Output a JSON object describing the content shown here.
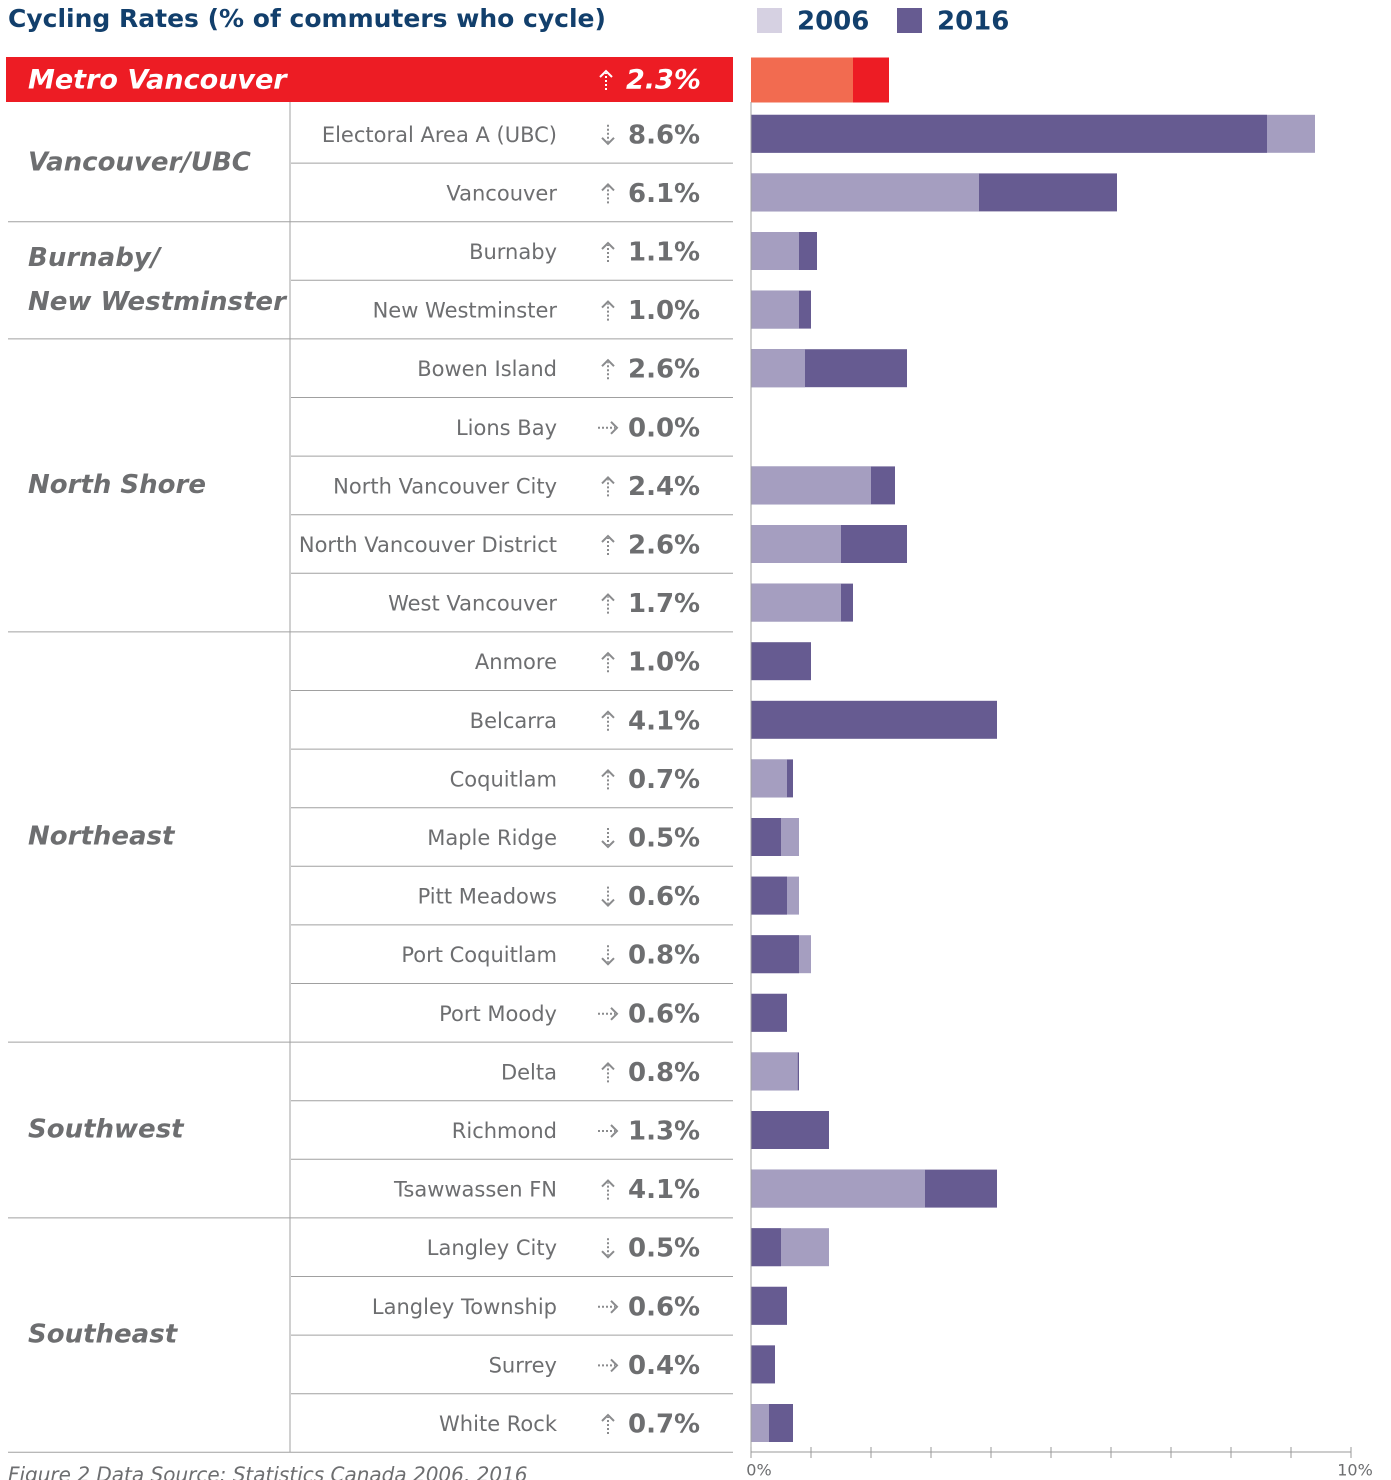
{
  "chart_data": {
    "type": "bar",
    "title": "Cycling Rates (% of commuters who cycle)",
    "footnote": "Figure 2 Data Source: Statistics Canada 2006, 2016",
    "series": [
      {
        "name": "2006",
        "color": "#a59ec0"
      },
      {
        "name": "2016",
        "color": "#665b91"
      }
    ],
    "legend_colors": [
      "#d6d1e2",
      "#665b91"
    ],
    "xlim": [
      0,
      10
    ],
    "xticks": [
      {
        "value": 0,
        "label": "0%"
      },
      {
        "value": 10,
        "label": "10%"
      }
    ],
    "xminor_ticks": [
      1,
      2,
      3,
      4,
      5,
      6,
      7,
      8,
      9
    ],
    "total": {
      "category": "Metro Vancouver",
      "values": [
        1.7,
        2.3
      ],
      "value_label": "2.3%",
      "trend": "up",
      "colors": [
        "#f26b50",
        "#ed1c24"
      ]
    },
    "groups": [
      {
        "name_lines": [
          "Vancouver/UBC"
        ],
        "rows": [
          {
            "category": "Electoral Area A (UBC)",
            "values": [
              9.4,
              8.6
            ],
            "value_label": "8.6%",
            "trend": "down"
          },
          {
            "category": "Vancouver",
            "values": [
              3.8,
              6.1
            ],
            "value_label": "6.1%",
            "trend": "up"
          }
        ]
      },
      {
        "name_lines": [
          "Burnaby/",
          "New Westminster"
        ],
        "rows": [
          {
            "category": "Burnaby",
            "values": [
              0.8,
              1.1
            ],
            "value_label": "1.1%",
            "trend": "up"
          },
          {
            "category": "New Westminster",
            "values": [
              0.8,
              1.0
            ],
            "value_label": "1.0%",
            "trend": "up"
          }
        ]
      },
      {
        "name_lines": [
          "North Shore"
        ],
        "rows": [
          {
            "category": "Bowen Island",
            "values": [
              0.9,
              2.6
            ],
            "value_label": "2.6%",
            "trend": "up"
          },
          {
            "category": "Lions Bay",
            "values": [
              0,
              0
            ],
            "value_label": "0.0%",
            "trend": "flat"
          },
          {
            "category": "North Vancouver City",
            "values": [
              2.0,
              2.4
            ],
            "value_label": "2.4%",
            "trend": "up"
          },
          {
            "category": "North Vancouver District",
            "values": [
              1.5,
              2.6
            ],
            "value_label": "2.6%",
            "trend": "up"
          },
          {
            "category": "West Vancouver",
            "values": [
              1.5,
              1.7
            ],
            "value_label": "1.7%",
            "trend": "up"
          }
        ]
      },
      {
        "name_lines": [
          "Northeast"
        ],
        "rows": [
          {
            "category": "Anmore",
            "values": [
              0,
              1.0
            ],
            "value_label": "1.0%",
            "trend": "up"
          },
          {
            "category": "Belcarra",
            "values": [
              0,
              4.1
            ],
            "value_label": "4.1%",
            "trend": "up"
          },
          {
            "category": "Coquitlam",
            "values": [
              0.6,
              0.7
            ],
            "value_label": "0.7%",
            "trend": "up"
          },
          {
            "category": "Maple Ridge",
            "values": [
              0.8,
              0.5
            ],
            "value_label": "0.5%",
            "trend": "down"
          },
          {
            "category": "Pitt Meadows",
            "values": [
              0.8,
              0.6
            ],
            "value_label": "0.6%",
            "trend": "down"
          },
          {
            "category": "Port Coquitlam",
            "values": [
              1.0,
              0.8
            ],
            "value_label": "0.8%",
            "trend": "down"
          },
          {
            "category": "Port Moody",
            "values": [
              0.6,
              0.6
            ],
            "value_label": "0.6%",
            "trend": "flat"
          }
        ]
      },
      {
        "name_lines": [
          "Southwest"
        ],
        "rows": [
          {
            "category": "Delta",
            "values": [
              0.78,
              0.8
            ],
            "value_label": "0.8%",
            "trend": "up"
          },
          {
            "category": "Richmond",
            "values": [
              1.3,
              1.3
            ],
            "value_label": "1.3%",
            "trend": "flat"
          },
          {
            "category": "Tsawwassen FN",
            "values": [
              2.9,
              4.1
            ],
            "value_label": "4.1%",
            "trend": "up"
          }
        ]
      },
      {
        "name_lines": [
          "Southeast"
        ],
        "rows": [
          {
            "category": "Langley City",
            "values": [
              1.3,
              0.5
            ],
            "value_label": "0.5%",
            "trend": "down"
          },
          {
            "category": "Langley Township",
            "values": [
              0.6,
              0.6
            ],
            "value_label": "0.6%",
            "trend": "flat"
          },
          {
            "category": "Surrey",
            "values": [
              0.4,
              0.4
            ],
            "value_label": "0.4%",
            "trend": "flat"
          },
          {
            "category": "White Rock",
            "values": [
              0.3,
              0.7
            ],
            "value_label": "0.7%",
            "trend": "up"
          }
        ]
      }
    ]
  }
}
